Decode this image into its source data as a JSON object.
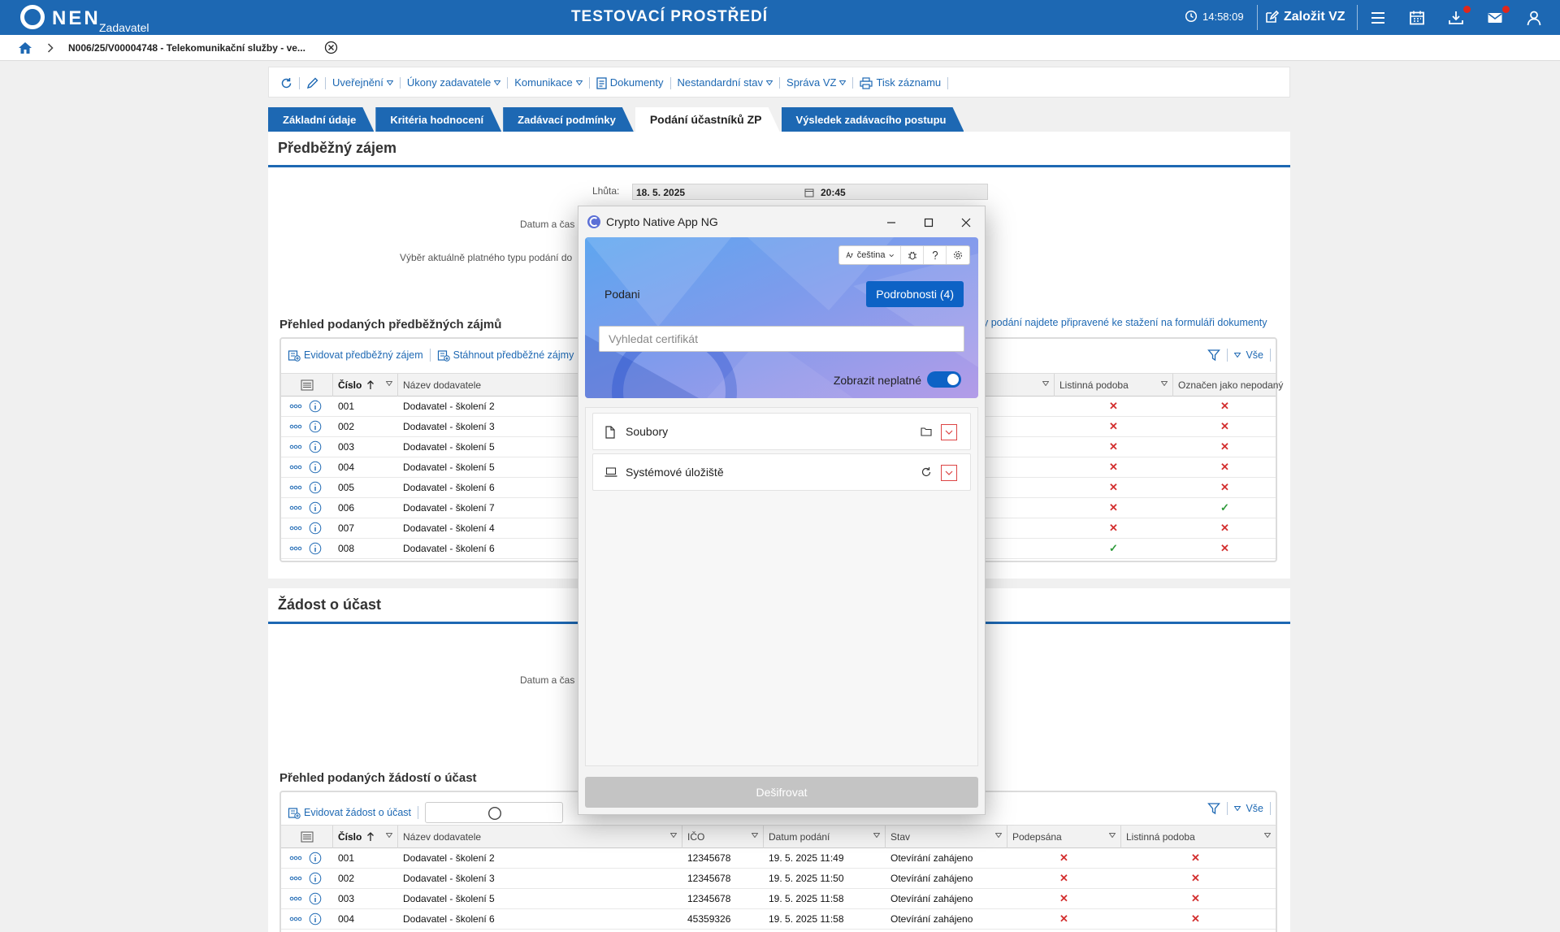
{
  "header": {
    "logo_text": "NEN",
    "logo_sub": "Zadavatel",
    "env_title": "TESTOVACÍ PROSTŘEDÍ",
    "clock": "14:58:09",
    "create_label": "Založit VZ"
  },
  "breadcrumb": {
    "text": "N006/25/V00004748 - Telekomunikační služby - ve..."
  },
  "toolbar": {
    "items": [
      "Uveřejnění",
      "Úkony zadavatele",
      "Komunikace",
      "Dokumenty",
      "Nestandardní stav",
      "Správa VZ",
      "Tisk záznamu"
    ]
  },
  "tabs": [
    "Základní údaje",
    "Kritéria hodnocení",
    "Zadávací podmínky",
    "Podání účastníků ZP",
    "Výsledek zadávacího postupu"
  ],
  "predbezny": {
    "title": "Předběžný zájem",
    "lhuta_label": "Lhůta:",
    "lhuta_date": "18. 5. 2025",
    "lhuta_time": "20:45",
    "datum_label": "Datum a čas",
    "vyber_label": "Výběr aktuálně platného typu podání do",
    "prehled_title": "Přehled podaných předběžných zájmů",
    "note": "y podání najdete připravené ke stažení na formuláři dokumenty",
    "btn_evidovat": "Evidovat předběžný zájem",
    "btn_stahnout": "Stáhnout předběžné zájmy",
    "vse": "Vše",
    "headers": {
      "cislo": "Číslo",
      "nazev": "Název dodavatele",
      "listinna": "Listinná podoba",
      "oznacen": "Označen jako nepodaný"
    },
    "rows": [
      {
        "cislo": "001",
        "nazev": "Dodavatel - školení 2",
        "listinna": "✕",
        "oznacen": "✕"
      },
      {
        "cislo": "002",
        "nazev": "Dodavatel - školení 3",
        "listinna": "✕",
        "oznacen": "✕"
      },
      {
        "cislo": "003",
        "nazev": "Dodavatel - školení 5",
        "listinna": "✕",
        "oznacen": "✕"
      },
      {
        "cislo": "004",
        "nazev": "Dodavatel - školení 5",
        "listinna": "✕",
        "oznacen": "✕"
      },
      {
        "cislo": "005",
        "nazev": "Dodavatel - školení 6",
        "listinna": "✕",
        "oznacen": "✕"
      },
      {
        "cislo": "006",
        "nazev": "Dodavatel - školení 7",
        "listinna": "✕",
        "oznacen": "✓"
      },
      {
        "cislo": "007",
        "nazev": "Dodavatel - školení 4",
        "listinna": "✕",
        "oznacen": "✕"
      },
      {
        "cislo": "008",
        "nazev": "Dodavatel - školení 6",
        "listinna": "✓",
        "oznacen": "✕"
      }
    ]
  },
  "zadost": {
    "title": "Žádost o účast",
    "datum_label": "Datum a čas",
    "prehled_title": "Přehled podaných žádostí o účast",
    "btn_evidovat": "Evidovat žádost o účast",
    "vse": "Vše",
    "headers": {
      "cislo": "Číslo",
      "nazev": "Název dodavatele",
      "ico": "IČO",
      "datum": "Datum podání",
      "stav": "Stav",
      "podepsana": "Podepsána",
      "listinna": "Listinná podoba"
    },
    "rows": [
      {
        "cislo": "001",
        "nazev": "Dodavatel - školení 2",
        "ico": "12345678",
        "datum": "19. 5. 2025 11:49",
        "stav": "Otevírání zahájeno",
        "podepsana": "✕",
        "listinna": "✕"
      },
      {
        "cislo": "002",
        "nazev": "Dodavatel - školení 3",
        "ico": "12345678",
        "datum": "19. 5. 2025 11:50",
        "stav": "Otevírání zahájeno",
        "podepsana": "✕",
        "listinna": "✕"
      },
      {
        "cislo": "003",
        "nazev": "Dodavatel - školení 5",
        "ico": "12345678",
        "datum": "19. 5. 2025 11:58",
        "stav": "Otevírání zahájeno",
        "podepsana": "✕",
        "listinna": "✕"
      },
      {
        "cislo": "004",
        "nazev": "Dodavatel - školení 6",
        "ico": "45359326",
        "datum": "19. 5. 2025 11:58",
        "stav": "Otevírání zahájeno",
        "podepsana": "✕",
        "listinna": "✕"
      }
    ]
  },
  "modal": {
    "title": "Crypto Native App NG",
    "lang": "čeština",
    "podani_label": "Podani",
    "details_button": "Podrobnosti (4)",
    "search_placeholder": "Vyhledat certifikát",
    "toggle_label": "Zobrazit neplatné",
    "sources": [
      {
        "label": "Soubory",
        "icon": "file-icon",
        "action_icon": "folder-icon"
      },
      {
        "label": "Systémové úložiště",
        "icon": "laptop-icon",
        "action_icon": "refresh-icon"
      }
    ],
    "decrypt_button": "Dešifrovat"
  },
  "colors": {
    "primary": "#1d68b3",
    "modal_accent": "#0d62c5",
    "error": "#d32f2f",
    "success": "#2e9a3a"
  }
}
